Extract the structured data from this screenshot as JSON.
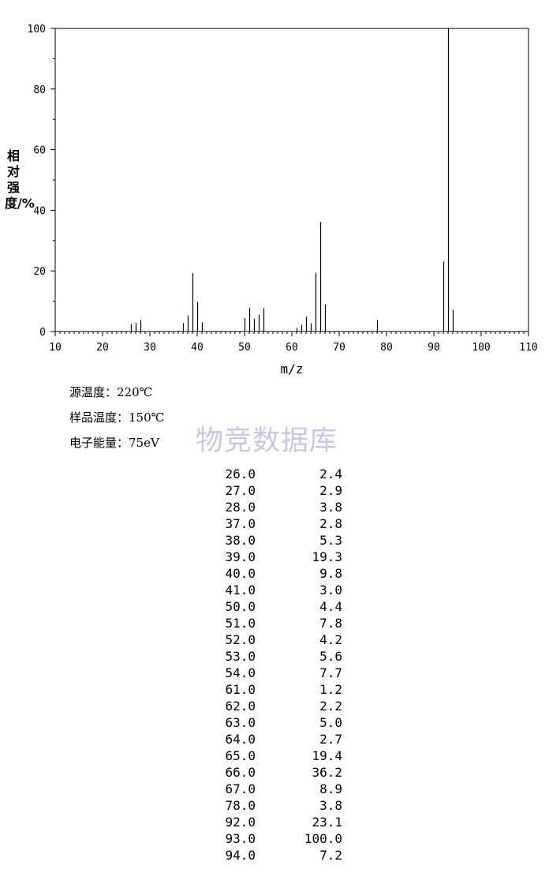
{
  "chart_data": {
    "type": "bar",
    "xlabel": "m/z",
    "ylabel": "相对强度/%",
    "xlim": [
      10,
      110
    ],
    "ylim": [
      0,
      100
    ],
    "x_ticks": [
      "10",
      "20",
      "30",
      "40",
      "50",
      "60",
      "70",
      "80",
      "90",
      "100",
      "110"
    ],
    "y_ticks": [
      "0",
      "20",
      "40",
      "60",
      "80",
      "100"
    ],
    "grid": false,
    "peaks": [
      {
        "mz": 26.0,
        "intensity": 2.4
      },
      {
        "mz": 27.0,
        "intensity": 2.9
      },
      {
        "mz": 28.0,
        "intensity": 3.8
      },
      {
        "mz": 37.0,
        "intensity": 2.8
      },
      {
        "mz": 38.0,
        "intensity": 5.3
      },
      {
        "mz": 39.0,
        "intensity": 19.3
      },
      {
        "mz": 40.0,
        "intensity": 9.8
      },
      {
        "mz": 41.0,
        "intensity": 3.0
      },
      {
        "mz": 50.0,
        "intensity": 4.4
      },
      {
        "mz": 51.0,
        "intensity": 7.8
      },
      {
        "mz": 52.0,
        "intensity": 4.2
      },
      {
        "mz": 53.0,
        "intensity": 5.6
      },
      {
        "mz": 54.0,
        "intensity": 7.7
      },
      {
        "mz": 61.0,
        "intensity": 1.2
      },
      {
        "mz": 62.0,
        "intensity": 2.2
      },
      {
        "mz": 63.0,
        "intensity": 5.0
      },
      {
        "mz": 64.0,
        "intensity": 2.7
      },
      {
        "mz": 65.0,
        "intensity": 19.4
      },
      {
        "mz": 66.0,
        "intensity": 36.2
      },
      {
        "mz": 67.0,
        "intensity": 8.9
      },
      {
        "mz": 78.0,
        "intensity": 3.8
      },
      {
        "mz": 92.0,
        "intensity": 23.1
      },
      {
        "mz": 93.0,
        "intensity": 100.0
      },
      {
        "mz": 94.0,
        "intensity": 7.2
      }
    ]
  },
  "conditions": [
    {
      "label": "源温度：",
      "value": "220℃"
    },
    {
      "label": "样品温度：",
      "value": "150℃"
    },
    {
      "label": "电子能量：",
      "value": "75eV"
    }
  ],
  "watermark": "物竞数据库",
  "peak_table": [
    {
      "mz": "26.0",
      "intensity": "2.4"
    },
    {
      "mz": "27.0",
      "intensity": "2.9"
    },
    {
      "mz": "28.0",
      "intensity": "3.8"
    },
    {
      "mz": "37.0",
      "intensity": "2.8"
    },
    {
      "mz": "38.0",
      "intensity": "5.3"
    },
    {
      "mz": "39.0",
      "intensity": "19.3"
    },
    {
      "mz": "40.0",
      "intensity": "9.8"
    },
    {
      "mz": "41.0",
      "intensity": "3.0"
    },
    {
      "mz": "50.0",
      "intensity": "4.4"
    },
    {
      "mz": "51.0",
      "intensity": "7.8"
    },
    {
      "mz": "52.0",
      "intensity": "4.2"
    },
    {
      "mz": "53.0",
      "intensity": "5.6"
    },
    {
      "mz": "54.0",
      "intensity": "7.7"
    },
    {
      "mz": "61.0",
      "intensity": "1.2"
    },
    {
      "mz": "62.0",
      "intensity": "2.2"
    },
    {
      "mz": "63.0",
      "intensity": "5.0"
    },
    {
      "mz": "64.0",
      "intensity": "2.7"
    },
    {
      "mz": "65.0",
      "intensity": "19.4"
    },
    {
      "mz": "66.0",
      "intensity": "36.2"
    },
    {
      "mz": "67.0",
      "intensity": "8.9"
    },
    {
      "mz": "78.0",
      "intensity": "3.8"
    },
    {
      "mz": "92.0",
      "intensity": "23.1"
    },
    {
      "mz": "93.0",
      "intensity": "100.0"
    },
    {
      "mz": "94.0",
      "intensity": "7.2"
    }
  ]
}
